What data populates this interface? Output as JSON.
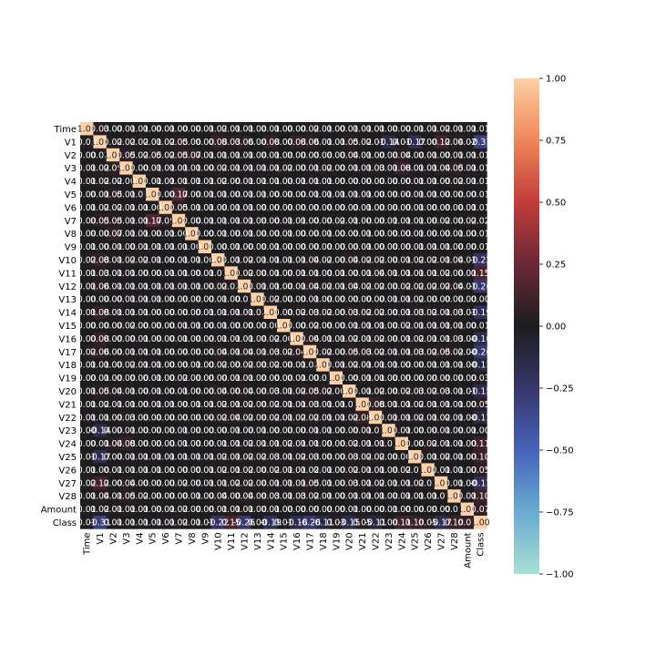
{
  "chart_data": {
    "type": "heatmap",
    "title": "",
    "xlabel": "",
    "ylabel": "",
    "labels": [
      "Time",
      "V1",
      "V2",
      "V3",
      "V4",
      "V5",
      "V6",
      "V7",
      "V8",
      "V9",
      "V10",
      "V11",
      "V12",
      "V13",
      "V14",
      "V15",
      "V16",
      "V17",
      "V18",
      "V19",
      "V20",
      "V21",
      "V22",
      "V23",
      "V24",
      "V25",
      "V26",
      "V27",
      "V28",
      "Amount",
      "Class"
    ],
    "values": [
      [
        1.0,
        0.03,
        0.0,
        0.01,
        0.01,
        0.0,
        0.01,
        0.0,
        0.0,
        0.01,
        0.02,
        0.01,
        0.01,
        0.0,
        0.01,
        0.0,
        0.0,
        0.02,
        0.01,
        0.0,
        0.01,
        0.01,
        0.01,
        0.0,
        0.0,
        0.01,
        0.01,
        0.02,
        0.01,
        0.01,
        0.01
      ],
      [
        0.03,
        1.0,
        0.02,
        0.02,
        0.02,
        0.01,
        0.02,
        0.05,
        0.0,
        0.0,
        0.08,
        0.03,
        0.06,
        0.0,
        0.08,
        0.0,
        0.08,
        0.06,
        0.01,
        0.01,
        0.05,
        0.02,
        0.01,
        -0.14,
        0.01,
        -0.17,
        0.0,
        0.12,
        0.04,
        0.02,
        -0.31
      ],
      [
        0.0,
        0.02,
        1.0,
        0.05,
        0.02,
        0.05,
        0.02,
        0.05,
        0.07,
        0.01,
        0.01,
        0.01,
        0.01,
        0.0,
        0.01,
        0.0,
        0.0,
        0.0,
        0.0,
        0.0,
        0.04,
        0.01,
        0.0,
        0.0,
        0.04,
        0.0,
        0.01,
        0.0,
        0.01,
        0.01,
        0.01
      ],
      [
        0.01,
        0.02,
        0.05,
        1.0,
        0.0,
        0.01,
        0.01,
        0.01,
        0.01,
        0.0,
        0.02,
        0.01,
        0.01,
        0.01,
        0.01,
        0.02,
        0.0,
        0.01,
        0.02,
        0.0,
        0.01,
        0.01,
        0.03,
        0.01,
        0.08,
        0.01,
        0.01,
        0.04,
        0.05,
        0.01,
        0.01
      ],
      [
        0.01,
        0.02,
        0.02,
        0.0,
        1.0,
        0.01,
        0.01,
        0.01,
        0.01,
        0.01,
        0.02,
        0.0,
        0.01,
        0.01,
        0.01,
        0.0,
        0.01,
        0.01,
        0.01,
        0.0,
        0.0,
        0.0,
        0.0,
        0.0,
        0.0,
        0.01,
        0.01,
        0.0,
        0.02,
        0.01,
        0.01
      ],
      [
        0.0,
        0.01,
        0.05,
        0.01,
        0.01,
        1.0,
        0.0,
        0.17,
        0.0,
        0.01,
        0.01,
        0.0,
        0.01,
        0.01,
        0.0,
        0.0,
        0.0,
        0.01,
        0.01,
        0.01,
        0.01,
        0.01,
        0.0,
        0.0,
        0.0,
        0.01,
        0.01,
        0.0,
        0.0,
        0.0,
        0.01
      ],
      [
        0.01,
        0.02,
        0.02,
        0.01,
        0.01,
        0.0,
        1.0,
        0.05,
        0.01,
        0.01,
        0.0,
        0.01,
        0.01,
        0.0,
        0.0,
        0.0,
        0.0,
        0.0,
        0.0,
        0.0,
        0.0,
        0.01,
        0.0,
        0.0,
        0.0,
        0.01,
        0.0,
        0.0,
        0.0,
        0.01,
        0.01
      ],
      [
        0.0,
        0.05,
        0.05,
        0.01,
        0.01,
        0.17,
        0.05,
        1.0,
        0.0,
        0.01,
        0.01,
        0.01,
        0.01,
        0.0,
        0.0,
        0.01,
        0.01,
        0.0,
        0.0,
        0.02,
        0.01,
        0.0,
        0.0,
        0.01,
        0.01,
        0.01,
        0.0,
        0.02,
        0.0,
        0.02,
        0.02
      ],
      [
        0.0,
        0.0,
        0.07,
        0.01,
        0.01,
        0.0,
        0.01,
        0.0,
        1.0,
        0.0,
        0.01,
        0.0,
        0.01,
        0.0,
        0.0,
        0.01,
        0.0,
        0.0,
        0.01,
        0.0,
        0.0,
        0.01,
        0.0,
        0.0,
        0.0,
        0.01,
        0.0,
        0.0,
        0.01,
        0.0,
        0.01
      ],
      [
        0.01,
        0.0,
        0.01,
        0.0,
        0.01,
        0.01,
        0.01,
        0.01,
        0.0,
        1.0,
        0.0,
        0.01,
        0.0,
        0.0,
        0.01,
        0.0,
        0.0,
        0.0,
        0.0,
        0.0,
        0.0,
        0.01,
        0.0,
        0.0,
        0.0,
        0.01,
        0.01,
        0.01,
        0.0,
        0.0,
        0.01
      ],
      [
        0.02,
        0.08,
        0.01,
        0.02,
        0.02,
        0.01,
        0.0,
        0.01,
        0.01,
        0.0,
        1.0,
        0.01,
        0.02,
        0.01,
        0.01,
        0.01,
        0.01,
        0.04,
        0.02,
        0.0,
        0.04,
        0.02,
        0.02,
        0.0,
        0.01,
        0.02,
        0.02,
        0.01,
        0.04,
        0.01,
        -0.22
      ],
      [
        0.01,
        0.03,
        0.01,
        0.01,
        0.0,
        0.0,
        0.01,
        0.01,
        0.0,
        0.01,
        0.01,
        1.0,
        0.02,
        0.0,
        0.01,
        0.0,
        0.01,
        0.01,
        0.0,
        0.01,
        0.0,
        0.01,
        0.04,
        0.01,
        0.01,
        0.01,
        0.01,
        0.02,
        0.0,
        0.01,
        0.15
      ],
      [
        0.01,
        0.06,
        0.01,
        0.01,
        0.01,
        0.01,
        0.01,
        0.01,
        0.01,
        0.0,
        0.02,
        0.02,
        1.0,
        0.01,
        0.01,
        0.0,
        0.01,
        0.04,
        0.02,
        0.01,
        0.04,
        0.02,
        0.02,
        0.0,
        0.02,
        0.02,
        0.02,
        0.02,
        0.04,
        0.01,
        -0.26
      ],
      [
        0.0,
        0.0,
        0.0,
        0.01,
        0.01,
        0.01,
        0.0,
        0.0,
        0.0,
        0.0,
        0.01,
        0.0,
        0.01,
        1.0,
        0.02,
        0.0,
        0.0,
        0.01,
        0.0,
        0.0,
        0.0,
        0.0,
        0.0,
        0.01,
        0.01,
        0.02,
        0.0,
        0.0,
        0.0,
        0.0,
        0.0
      ],
      [
        0.01,
        0.08,
        0.01,
        0.01,
        0.01,
        0.0,
        0.0,
        0.0,
        0.0,
        0.01,
        0.01,
        0.01,
        0.01,
        0.02,
        1.0,
        0.0,
        0.02,
        0.03,
        0.02,
        0.0,
        0.03,
        0.02,
        0.02,
        0.0,
        0.01,
        0.03,
        0.02,
        0.01,
        0.03,
        0.01,
        -0.19
      ],
      [
        0.0,
        0.0,
        0.0,
        0.02,
        0.0,
        0.0,
        0.0,
        0.01,
        0.01,
        0.0,
        0.01,
        0.0,
        0.0,
        0.0,
        0.0,
        1.0,
        0.0,
        0.02,
        0.0,
        0.0,
        0.01,
        0.01,
        0.01,
        0.0,
        0.02,
        0.01,
        0.01,
        0.01,
        0.01,
        0.0,
        0.01
      ],
      [
        0.0,
        0.08,
        0.0,
        0.0,
        0.01,
        0.0,
        0.0,
        0.01,
        0.0,
        0.0,
        0.01,
        0.01,
        0.01,
        0.0,
        0.02,
        0.0,
        1.0,
        0.04,
        0.01,
        0.01,
        0.02,
        0.01,
        0.02,
        0.0,
        0.01,
        0.02,
        0.01,
        0.01,
        0.03,
        0.0,
        -0.16
      ],
      [
        0.02,
        0.06,
        0.0,
        0.01,
        0.01,
        0.01,
        0.0,
        0.0,
        0.0,
        0.0,
        0.04,
        0.01,
        0.04,
        0.01,
        0.03,
        0.02,
        0.04,
        1.0,
        0.02,
        0.0,
        0.05,
        0.03,
        0.02,
        0.01,
        0.01,
        0.03,
        0.02,
        0.05,
        0.02,
        0.0,
        -0.26
      ],
      [
        0.01,
        0.01,
        0.0,
        0.02,
        0.01,
        0.01,
        0.0,
        0.0,
        0.01,
        0.0,
        0.02,
        0.0,
        0.02,
        0.0,
        0.02,
        0.0,
        0.01,
        0.02,
        1.0,
        0.01,
        0.02,
        0.01,
        0.01,
        0.01,
        0.0,
        0.0,
        0.01,
        0.01,
        0.01,
        0.0,
        -0.11
      ],
      [
        0.0,
        0.01,
        0.0,
        0.0,
        0.0,
        0.01,
        0.0,
        0.02,
        0.0,
        0.0,
        0.0,
        0.01,
        0.01,
        0.0,
        0.0,
        0.0,
        0.01,
        0.0,
        0.01,
        1.0,
        0.0,
        0.01,
        0.01,
        0.0,
        0.0,
        0.0,
        0.0,
        0.0,
        0.0,
        0.0,
        0.03
      ],
      [
        0.01,
        0.05,
        0.04,
        0.01,
        0.0,
        0.01,
        0.0,
        0.01,
        0.0,
        0.0,
        0.04,
        0.0,
        0.04,
        0.0,
        0.03,
        0.01,
        0.02,
        0.05,
        0.02,
        0.0,
        1.0,
        0.01,
        0.02,
        0.0,
        0.02,
        0.03,
        0.02,
        0.03,
        0.01,
        0.01,
        -0.15
      ],
      [
        0.01,
        0.02,
        0.01,
        0.01,
        0.0,
        0.01,
        0.01,
        0.0,
        0.01,
        0.01,
        0.02,
        0.01,
        0.02,
        0.0,
        0.02,
        0.01,
        0.01,
        0.03,
        0.01,
        0.01,
        0.01,
        1.0,
        0.08,
        0.01,
        0.01,
        0.02,
        0.01,
        0.01,
        0.01,
        0.0,
        0.05
      ],
      [
        0.01,
        0.01,
        0.0,
        0.03,
        0.0,
        0.0,
        0.0,
        0.0,
        0.0,
        0.0,
        0.02,
        0.04,
        0.02,
        0.0,
        0.02,
        0.01,
        0.02,
        0.02,
        0.01,
        0.01,
        0.02,
        0.08,
        1.0,
        0.01,
        0.01,
        0.02,
        0.01,
        0.02,
        0.01,
        0.0,
        -0.11
      ],
      [
        0.0,
        -0.14,
        0.0,
        0.01,
        0.0,
        0.0,
        0.0,
        0.01,
        0.0,
        0.0,
        0.0,
        0.01,
        0.0,
        0.01,
        0.0,
        0.0,
        0.0,
        0.01,
        0.01,
        0.0,
        0.0,
        0.01,
        0.01,
        1.0,
        0.01,
        0.0,
        0.0,
        0.01,
        0.0,
        0.01,
        0.0
      ],
      [
        0.0,
        0.01,
        0.04,
        0.08,
        0.0,
        0.0,
        0.0,
        0.01,
        0.0,
        0.0,
        0.01,
        0.01,
        0.02,
        0.01,
        0.01,
        0.02,
        0.01,
        0.01,
        0.0,
        0.0,
        0.02,
        0.01,
        0.01,
        0.01,
        1.0,
        0.0,
        0.02,
        0.01,
        0.01,
        0.0,
        0.11
      ],
      [
        0.01,
        -0.17,
        0.0,
        0.01,
        0.01,
        0.01,
        0.01,
        0.01,
        0.01,
        0.01,
        0.02,
        0.01,
        0.02,
        0.02,
        0.03,
        0.01,
        0.02,
        0.03,
        0.0,
        0.0,
        0.03,
        0.02,
        0.02,
        0.0,
        0.0,
        1.0,
        0.01,
        0.02,
        0.01,
        0.0,
        0.1
      ],
      [
        0.01,
        0.0,
        0.01,
        0.01,
        0.01,
        0.01,
        0.0,
        0.0,
        0.0,
        0.01,
        0.02,
        0.01,
        0.02,
        0.0,
        0.02,
        0.01,
        0.01,
        0.02,
        0.01,
        0.0,
        0.02,
        0.01,
        0.01,
        0.0,
        0.02,
        0.01,
        1.0,
        0.01,
        0.01,
        0.0,
        0.05
      ],
      [
        0.02,
        0.12,
        0.0,
        0.04,
        0.0,
        0.0,
        0.0,
        0.02,
        0.0,
        0.01,
        0.01,
        0.02,
        0.02,
        0.0,
        0.01,
        0.01,
        0.01,
        0.05,
        0.01,
        0.0,
        0.03,
        0.01,
        0.02,
        0.01,
        0.01,
        0.02,
        0.01,
        1.0,
        0.01,
        0.0,
        -0.17
      ],
      [
        0.01,
        0.04,
        0.01,
        0.05,
        0.02,
        0.0,
        0.0,
        0.0,
        0.01,
        0.0,
        0.04,
        0.0,
        0.04,
        0.0,
        0.03,
        0.01,
        0.03,
        0.02,
        0.01,
        0.0,
        0.01,
        0.01,
        0.01,
        0.0,
        0.01,
        0.01,
        0.01,
        0.01,
        1.0,
        0.01,
        0.1
      ],
      [
        0.01,
        0.02,
        0.01,
        0.01,
        0.01,
        0.0,
        0.01,
        0.02,
        0.0,
        0.0,
        0.01,
        0.01,
        0.01,
        0.0,
        0.01,
        0.0,
        0.0,
        0.0,
        0.0,
        0.0,
        0.01,
        0.0,
        0.0,
        0.01,
        0.0,
        0.0,
        0.0,
        0.0,
        0.01,
        1.0,
        0.07
      ],
      [
        0.01,
        -0.31,
        0.01,
        0.01,
        0.01,
        0.01,
        0.01,
        0.02,
        0.01,
        0.01,
        -0.22,
        0.15,
        -0.26,
        0.0,
        -0.19,
        0.01,
        -0.16,
        -0.26,
        -0.11,
        0.03,
        -0.15,
        0.05,
        -0.11,
        0.0,
        0.11,
        0.1,
        0.05,
        -0.17,
        0.1,
        0.07,
        1.0
      ]
    ],
    "vmin": -1.0,
    "vmax": 1.0,
    "center": 0.0,
    "colormap": "icefire",
    "annotations": true,
    "annotation_format": "0.00",
    "colorbar_ticks": [
      1.0,
      0.75,
      0.5,
      0.25,
      0.0,
      -0.25,
      -0.5,
      -0.75,
      -1.0
    ],
    "colorbar_tick_labels": [
      "1.00",
      "0.75",
      "0.50",
      "0.25",
      "0.00",
      "−0.25",
      "−0.50",
      "−0.75",
      "−1.00"
    ],
    "colorbar_position": "right",
    "grid": false,
    "legend": "none"
  }
}
